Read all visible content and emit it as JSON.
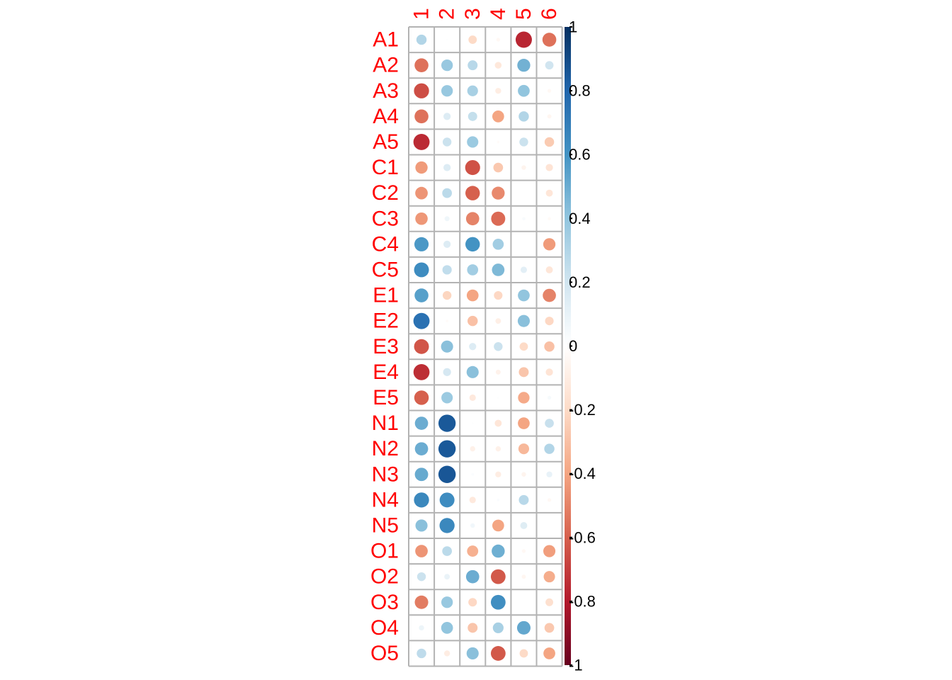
{
  "chart_data": {
    "type": "heatmap",
    "subtype": "correlation-circle-plot",
    "rows": [
      "A1",
      "A2",
      "A3",
      "A4",
      "A5",
      "C1",
      "C2",
      "C3",
      "C4",
      "C5",
      "E1",
      "E2",
      "E3",
      "E4",
      "E5",
      "N1",
      "N2",
      "N3",
      "N4",
      "N5",
      "O1",
      "O2",
      "O3",
      "O4",
      "O5"
    ],
    "columns": [
      "1",
      "2",
      "3",
      "4",
      "5",
      "6"
    ],
    "values": [
      [
        0.3,
        0.01,
        -0.2,
        -0.04,
        -0.76,
        -0.55
      ],
      [
        -0.55,
        0.38,
        0.28,
        -0.13,
        0.48,
        0.2
      ],
      [
        -0.65,
        0.38,
        0.33,
        -0.1,
        0.4,
        -0.04
      ],
      [
        -0.55,
        0.15,
        0.24,
        -0.4,
        0.3,
        -0.05
      ],
      [
        -0.75,
        0.22,
        0.37,
        -0.02,
        0.22,
        -0.26
      ],
      [
        -0.43,
        0.15,
        -0.64,
        -0.27,
        -0.06,
        -0.15
      ],
      [
        -0.45,
        0.27,
        -0.6,
        -0.48,
        0.0,
        -0.14
      ],
      [
        -0.44,
        0.07,
        -0.5,
        -0.57,
        0.03,
        -0.03
      ],
      [
        0.58,
        0.15,
        0.6,
        0.35,
        0.0,
        -0.43
      ],
      [
        0.63,
        0.25,
        0.35,
        0.45,
        0.12,
        -0.14
      ],
      [
        0.55,
        -0.22,
        -0.4,
        -0.21,
        0.4,
        -0.5
      ],
      [
        0.75,
        -0.02,
        -0.3,
        -0.09,
        0.42,
        -0.21
      ],
      [
        -0.63,
        0.42,
        0.15,
        0.22,
        -0.2,
        -0.3
      ],
      [
        -0.74,
        0.18,
        0.42,
        -0.07,
        -0.28,
        -0.15
      ],
      [
        -0.6,
        0.37,
        -0.12,
        0.01,
        -0.38,
        0.04
      ],
      [
        0.5,
        0.85,
        0.01,
        -0.14,
        -0.4,
        0.23
      ],
      [
        0.5,
        0.85,
        -0.08,
        -0.08,
        -0.33,
        0.3
      ],
      [
        0.51,
        0.86,
        0.02,
        -0.1,
        -0.06,
        0.1
      ],
      [
        0.65,
        0.63,
        -0.12,
        0.02,
        0.28,
        -0.04
      ],
      [
        0.42,
        0.65,
        0.06,
        -0.4,
        0.14,
        0.0
      ],
      [
        -0.45,
        0.27,
        -0.36,
        0.49,
        -0.04,
        -0.42
      ],
      [
        0.22,
        0.09,
        0.5,
        -0.62,
        -0.05,
        -0.37
      ],
      [
        -0.52,
        0.38,
        -0.21,
        0.62,
        0.0,
        -0.17
      ],
      [
        0.08,
        0.4,
        -0.28,
        0.33,
        0.52,
        -0.27
      ],
      [
        0.26,
        -0.1,
        0.42,
        -0.62,
        -0.2,
        -0.4
      ]
    ],
    "colorbar": {
      "range": [
        -1,
        1
      ],
      "ticks": [
        "1",
        "0.8",
        "0.6",
        "0.4",
        "0.2",
        "0",
        "-0.2",
        "-0.4",
        "-0.6",
        "-0.8",
        "-1"
      ],
      "palette": [
        "#67001F",
        "#B2182B",
        "#D6604D",
        "#F4A582",
        "#FDDBC7",
        "#FFFFFF",
        "#D1E5F0",
        "#92C5DE",
        "#4393C3",
        "#2166AC",
        "#053061"
      ]
    },
    "colors": {
      "labels": "#ff0000",
      "grid": "#b3b3b3",
      "ticks": "#000000"
    }
  }
}
